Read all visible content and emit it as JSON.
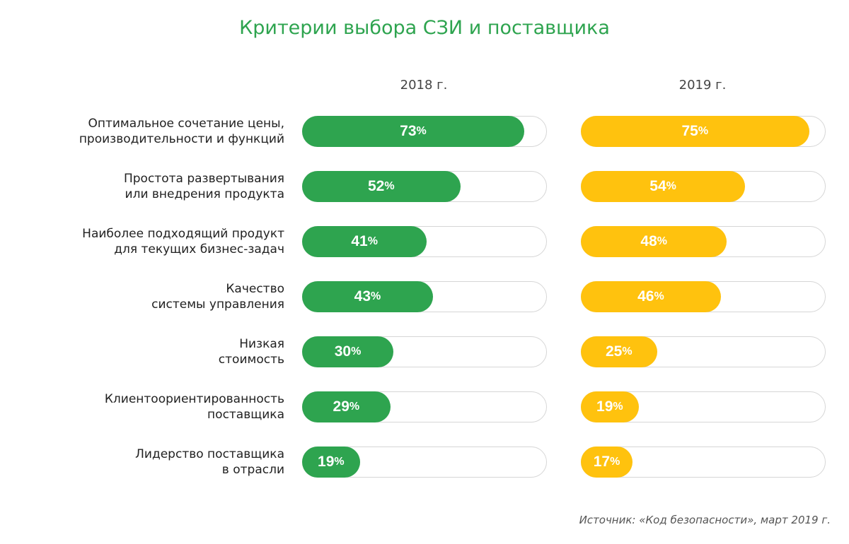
{
  "chart_data": {
    "type": "bar",
    "title": "Критерии выбора СЗИ и поставщика",
    "categories": [
      [
        "Оптимальное сочетание цены,",
        "производительности и функций"
      ],
      [
        "Простота развертывания",
        "или внедрения продукта"
      ],
      [
        "Наиболее подходящий продукт",
        "для текущих бизнес-задач"
      ],
      [
        "Качество",
        "системы управления"
      ],
      [
        "Низкая",
        "стоимость"
      ],
      [
        "Клиентоориентированность",
        "поставщика"
      ],
      [
        "Лидерство поставщика",
        "в отрасли"
      ]
    ],
    "series": [
      {
        "name": "2018 г.",
        "color": "#2ea44f",
        "values": [
          73,
          52,
          41,
          43,
          30,
          29,
          19
        ]
      },
      {
        "name": "2019 г.",
        "color": "#ffc20e",
        "values": [
          75,
          54,
          48,
          46,
          25,
          19,
          17
        ]
      }
    ],
    "unit": "%",
    "source": "Источник: «Код безопасности», март 2019 г."
  }
}
